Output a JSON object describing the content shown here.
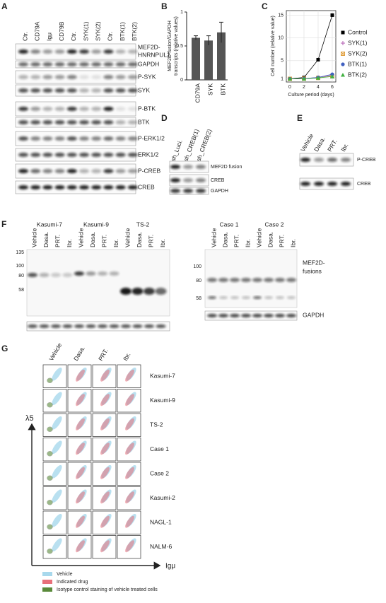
{
  "panel_labels": [
    "A",
    "B",
    "C",
    "D",
    "E",
    "F",
    "G"
  ],
  "panel_a": {
    "lanes": [
      "Ctr.",
      "CD79A",
      "Igμ",
      "CD79B",
      "Ctr.",
      "SYK(1)",
      "SYK(2)",
      "Ctr.",
      "BTK(1)",
      "BTK(2)"
    ],
    "fusion_label": [
      "MEF2D-",
      "HNRNPUL1"
    ],
    "rows": [
      "GAPDH",
      "P-SYK",
      "SYK",
      "P-BTK",
      "BTK",
      "P-ERK1/2",
      "ERK1/2",
      "P-CREB",
      "CREB"
    ]
  },
  "chart_data": [
    {
      "type": "bar",
      "y_label": [
        "MEF2D-fusion/GAPDH",
        "transcripts (relative values)"
      ],
      "categories": [
        "CD79A",
        "SYK",
        "BTK"
      ],
      "values": [
        0.62,
        0.58,
        0.7
      ],
      "errors": [
        0.03,
        0.07,
        0.15
      ],
      "color": "#555555",
      "ylim": [
        0,
        1
      ],
      "yticks": [
        0,
        0.5,
        1
      ]
    },
    {
      "type": "line",
      "y_label": "Cell number (relative value)",
      "x_label": "Culture period (days)",
      "x": [
        0,
        2,
        4,
        6
      ],
      "xlim": [
        -0.5,
        6.5
      ],
      "xticks": [
        0,
        2,
        4,
        6
      ],
      "ylim": [
        0.3,
        16
      ],
      "yticks": [
        1,
        5,
        10,
        15
      ],
      "grid": true,
      "series": [
        {
          "name": "Control",
          "color": "#000000",
          "marker": "square",
          "values": [
            1,
            1.3,
            5.2,
            15
          ]
        },
        {
          "name": "SYK(1)",
          "color": "#b05ab0",
          "marker": "plus",
          "values": [
            1,
            1.05,
            1.3,
            1.8
          ]
        },
        {
          "name": "SYK(2)",
          "color": "#e0a040",
          "marker": "x-box",
          "values": [
            1,
            1.05,
            1.2,
            1.6
          ]
        },
        {
          "name": "BTK(1)",
          "color": "#4060c0",
          "marker": "circle",
          "values": [
            1,
            1.05,
            1.3,
            2
          ]
        },
        {
          "name": "BTK(2)",
          "color": "#40b040",
          "marker": "triangle",
          "values": [
            1,
            1,
            1.2,
            1.5
          ]
        }
      ]
    }
  ],
  "panel_d": {
    "lanes": [
      "sh_Luci.",
      "sh_CREB(1)",
      "sh_CREB(2)"
    ],
    "rows": [
      "MEF2D fusion",
      "CREB",
      "GAPDH"
    ]
  },
  "panel_e": {
    "lanes": [
      "Vehicle",
      "Dasa.",
      "PRT.",
      "Ibr."
    ],
    "rows": [
      "P-CREB",
      "CREB"
    ]
  },
  "panel_f": {
    "groups_left": [
      "Kasumi-7",
      "Kasumi-9",
      "TS-2"
    ],
    "lanes_left": [
      "Vehicle",
      "Dasa.",
      "PRT.",
      "Ibr.",
      "Vehicle",
      "Dasa.",
      "PRT.",
      "Ibr.",
      "Vehicle",
      "Dasa.",
      "PRT.",
      "Ibr."
    ],
    "markers_left": [
      135,
      100,
      80,
      58
    ],
    "groups_right": [
      "Case 1",
      "Case 2"
    ],
    "lanes_right": [
      "Vehicle",
      "Dasa.",
      "PRT.",
      "Ibr.",
      "Vehicle",
      "Dasa.",
      "PRT.",
      "Ibr."
    ],
    "markers_right": [
      100,
      80,
      58
    ],
    "fusion_label": [
      "MEF2D-",
      "fusions"
    ],
    "loading_label": "GAPDH"
  },
  "panel_g": {
    "columns": [
      "Vehicle",
      "Dasa.",
      "PRT.",
      "Ibr."
    ],
    "rows": [
      "Kasumi-7",
      "Kasumi-9",
      "TS-2",
      "Case 1",
      "Case 2",
      "Kasumi-2",
      "NAGL-1",
      "NALM-6"
    ],
    "y_axis": "λ5",
    "x_axis": "Igμ",
    "legend": [
      "Vehicle",
      "Indicated drug",
      "Isotype control staining of vehicle treated cells"
    ]
  }
}
